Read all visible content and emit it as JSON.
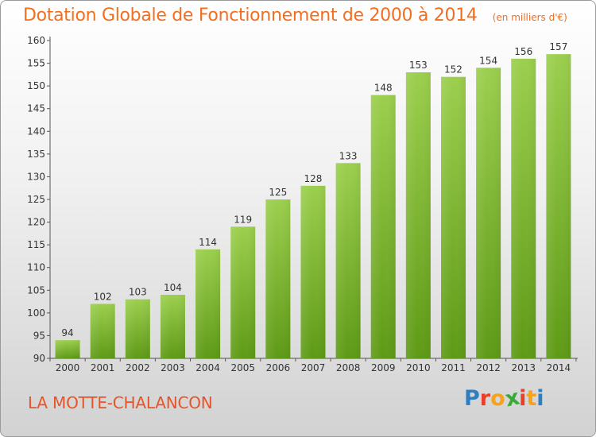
{
  "header": {
    "title": "Dotation Globale de Fonctionnement de 2000 à 2014",
    "unit": "(en milliers d'€)"
  },
  "footer": {
    "commune": "LA MOTTE-CHALANCON",
    "brand": [
      "P",
      "r",
      "o",
      "x",
      "i",
      "t",
      "i"
    ],
    "brand_colors": [
      "#2d7fc1",
      "#e83f2b",
      "#f7a21b",
      "#3aa935",
      "#e83f2b",
      "#f7a21b",
      "#2d7fc1"
    ]
  },
  "colors": {
    "title": "#f36e1e",
    "commune": "#e8542a",
    "bar_top": "#9ccf4e",
    "bar_bottom": "#5e9a16",
    "value_label": "#333333",
    "axis": "#555555"
  },
  "chart_data": {
    "type": "bar",
    "categories": [
      "2000",
      "2001",
      "2002",
      "2003",
      "2004",
      "2005",
      "2006",
      "2007",
      "2008",
      "2009",
      "2010",
      "2011",
      "2012",
      "2013",
      "2014"
    ],
    "values": [
      94,
      102,
      103,
      104,
      114,
      119,
      125,
      128,
      133,
      148,
      153,
      152,
      154,
      156,
      157
    ],
    "ylim": [
      90,
      160
    ],
    "yticks": [
      90,
      95,
      100,
      105,
      110,
      115,
      120,
      125,
      130,
      135,
      140,
      145,
      150,
      155,
      160
    ],
    "grid": false,
    "legend": "none"
  }
}
